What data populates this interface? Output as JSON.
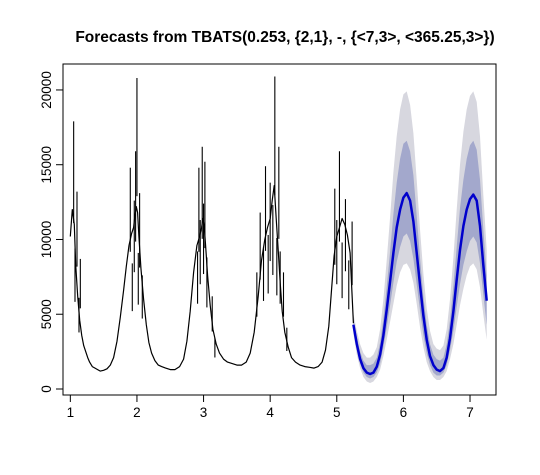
{
  "chart_data": {
    "type": "line",
    "title": "Forecasts from TBATS(0.253, {2,1}, -, {<7,3>, <365.25,3>})",
    "xlabel": "",
    "ylabel": "",
    "xlim": [
      0.95,
      7.3
    ],
    "ylim": [
      0,
      21000
    ],
    "x_ticks": [
      1,
      2,
      3,
      4,
      5,
      6,
      7
    ],
    "x_tick_labels": [
      "1",
      "2",
      "3",
      "4",
      "5",
      "6",
      "7"
    ],
    "y_ticks": [
      0,
      5000,
      10000,
      15000,
      20000
    ],
    "y_tick_labels": [
      "0",
      "5000",
      "10000",
      "15000",
      "20000"
    ],
    "grid": false,
    "colors": {
      "history": "#000000",
      "forecast": "#0000cc",
      "band80": "#a3a8cc",
      "band95": "#d7d7df"
    },
    "series": [
      {
        "x": [
          1.0,
          1.03,
          1.06,
          1.08,
          1.11,
          1.14,
          1.17,
          1.2,
          1.23,
          1.26,
          1.29,
          1.33,
          1.37,
          1.41,
          1.45,
          1.5,
          1.55,
          1.6,
          1.65,
          1.7,
          1.75,
          1.8,
          1.84,
          1.88,
          1.92,
          1.95,
          1.97,
          1.99,
          2.01,
          2.03,
          2.06,
          2.1,
          2.14,
          2.18,
          2.22,
          2.27,
          2.32,
          2.37,
          2.43,
          2.5,
          2.57,
          2.64,
          2.7,
          2.75,
          2.8,
          2.85,
          2.9,
          2.94,
          2.97,
          2.99,
          3.01,
          3.03,
          3.06,
          3.1,
          3.14,
          3.19,
          3.24,
          3.3,
          3.36,
          3.43,
          3.5,
          3.57,
          3.64,
          3.7,
          3.76,
          3.82,
          3.87,
          3.92,
          3.96,
          4.0,
          4.03,
          4.06,
          4.09,
          4.12,
          4.15,
          4.18,
          4.22,
          4.27,
          4.32,
          4.38,
          4.45,
          4.52,
          4.59,
          4.66,
          4.72,
          4.78,
          4.83,
          4.88,
          4.92,
          4.96,
          5.0,
          5.04,
          5.08,
          5.12,
          5.16,
          5.2,
          5.25
        ],
        "y": [
          10200,
          12000,
          11000,
          8300,
          6200,
          4600,
          3600,
          2900,
          2500,
          2100,
          1800,
          1500,
          1400,
          1300,
          1200,
          1250,
          1350,
          1600,
          2100,
          3200,
          4800,
          6600,
          8200,
          9600,
          10400,
          10800,
          11600,
          12200,
          11800,
          10200,
          8100,
          6000,
          4300,
          3100,
          2400,
          1900,
          1600,
          1500,
          1400,
          1300,
          1300,
          1500,
          2000,
          3200,
          5200,
          7800,
          9600,
          10200,
          10800,
          11400,
          10900,
          9600,
          7600,
          5600,
          4000,
          3000,
          2400,
          2000,
          1800,
          1700,
          1600,
          1600,
          1800,
          2400,
          3800,
          6200,
          8600,
          10000,
          10800,
          11400,
          12600,
          13600,
          11400,
          9300,
          7100,
          5200,
          3800,
          2800,
          2100,
          1800,
          1600,
          1500,
          1450,
          1400,
          1500,
          1800,
          2600,
          4200,
          6600,
          8900,
          10200,
          10800,
          11400,
          11000,
          10300,
          9100,
          4400
        ]
      },
      {
        "x": [
          1.05,
          1.07,
          1.1,
          1.13,
          1.15,
          1.9,
          1.93,
          1.96,
          1.98,
          2.0,
          2.02,
          2.04,
          2.08,
          2.91,
          2.93,
          2.95,
          2.98,
          3.0,
          3.02,
          3.05,
          3.13,
          3.17,
          3.8,
          3.85,
          3.9,
          3.93,
          3.97,
          4.0,
          4.04,
          4.07,
          4.1,
          4.13,
          4.15,
          4.2,
          4.25,
          4.97,
          5.0,
          5.04,
          5.08,
          5.13,
          5.18,
          5.23
        ],
        "y": [
          17900,
          9400,
          13200,
          6100,
          8700,
          14800,
          8400,
          12600,
          15900,
          20800,
          9100,
          13100,
          7600,
          9200,
          14800,
          11300,
          16200,
          12400,
          15200,
          8800,
          6200,
          3400,
          7800,
          11800,
          9500,
          14900,
          10300,
          13800,
          12300,
          20900,
          10100,
          16200,
          9200,
          7800,
          4100,
          13400,
          11300,
          15900,
          9800,
          12700,
          8600,
          11200
        ]
      },
      {
        "x": [
          5.25,
          5.3,
          5.35,
          5.4,
          5.45,
          5.5,
          5.55,
          5.6,
          5.65,
          5.7,
          5.75,
          5.8,
          5.85,
          5.9,
          5.95,
          6.0,
          6.05,
          6.1,
          6.15,
          6.2,
          6.25,
          6.3,
          6.35,
          6.4,
          6.45,
          6.5,
          6.55,
          6.6,
          6.65,
          6.7,
          6.75,
          6.8,
          6.85,
          6.9,
          6.95,
          7.0,
          7.05,
          7.1,
          7.15,
          7.2,
          7.25
        ],
        "y": [
          4300,
          3000,
          2000,
          1400,
          1100,
          1000,
          1100,
          1500,
          2300,
          3600,
          5300,
          7200,
          9100,
          10800,
          12000,
          12800,
          13100,
          12600,
          11200,
          9100,
          6900,
          4900,
          3300,
          2200,
          1600,
          1300,
          1200,
          1400,
          2100,
          3400,
          5200,
          7300,
          9300,
          10900,
          12000,
          12700,
          13000,
          12600,
          10900,
          8300,
          5900
        ]
      }
    ],
    "bands": {
      "x": [
        5.25,
        5.3,
        5.35,
        5.4,
        5.45,
        5.5,
        5.55,
        5.6,
        5.65,
        5.7,
        5.75,
        5.8,
        5.85,
        5.9,
        5.95,
        6.0,
        6.05,
        6.1,
        6.15,
        6.2,
        6.25,
        6.3,
        6.35,
        6.4,
        6.45,
        6.5,
        6.55,
        6.6,
        6.65,
        6.7,
        6.75,
        6.8,
        6.85,
        6.9,
        6.95,
        7.0,
        7.05,
        7.1,
        7.15,
        7.2,
        7.25
      ],
      "lo95": [
        3700,
        2300,
        1400,
        800,
        500,
        400,
        500,
        800,
        1300,
        2200,
        3300,
        4500,
        5700,
        6900,
        7800,
        8300,
        8400,
        8000,
        7100,
        5700,
        4100,
        2800,
        1800,
        1200,
        800,
        600,
        600,
        800,
        1200,
        2000,
        3000,
        4300,
        5600,
        6700,
        7600,
        8200,
        8400,
        8000,
        6800,
        5000,
        3300
      ],
      "lo80": [
        4000,
        2600,
        1700,
        1100,
        800,
        700,
        800,
        1100,
        1700,
        2800,
        4100,
        5600,
        7100,
        8500,
        9500,
        10200,
        10400,
        9900,
        8700,
        7000,
        5200,
        3600,
        2400,
        1600,
        1100,
        900,
        900,
        1100,
        1600,
        2600,
        3900,
        5500,
        7000,
        8300,
        9200,
        9900,
        10200,
        9800,
        8400,
        6300,
        4300
      ],
      "hi80": [
        4700,
        3500,
        2500,
        1900,
        1600,
        1600,
        1700,
        2100,
        3100,
        4700,
        6800,
        9200,
        11700,
        13800,
        15400,
        16400,
        16600,
        15900,
        14300,
        11600,
        8700,
        6200,
        4300,
        3000,
        2300,
        2000,
        1900,
        2100,
        3000,
        4600,
        6900,
        9500,
        12100,
        14000,
        15400,
        16300,
        16600,
        16000,
        14000,
        10700,
        7600
      ],
      "hi95": [
        5000,
        3900,
        3000,
        2400,
        2100,
        2100,
        2300,
        2800,
        4000,
        6000,
        8600,
        11500,
        14500,
        16900,
        18700,
        19700,
        19900,
        19000,
        17100,
        14000,
        10600,
        7700,
        5400,
        3900,
        3000,
        2700,
        2600,
        2900,
        4000,
        6000,
        8800,
        12000,
        15000,
        17200,
        18700,
        19600,
        19900,
        19200,
        16900,
        13000,
        9300
      ]
    }
  }
}
